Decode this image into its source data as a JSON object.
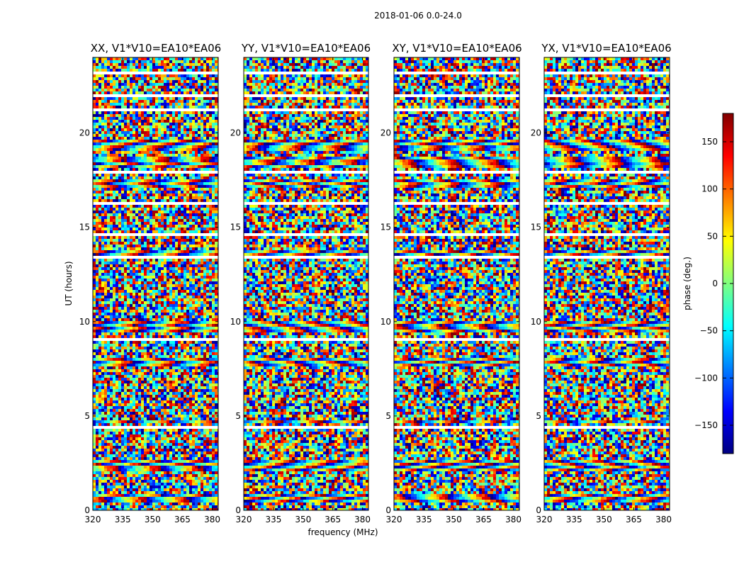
{
  "figure_title": "2018-01-06 0.0-24.0",
  "chart_data": {
    "type": "heatmap",
    "ylabel": "UT (hours)",
    "xlabel": "frequency (MHz)",
    "xlim": [
      320,
      383
    ],
    "ylim": [
      0,
      24
    ],
    "x_ticks": [
      320,
      335,
      350,
      365,
      380
    ],
    "y_ticks": [
      0,
      5,
      10,
      15,
      20
    ],
    "colorbar": {
      "label": "phase (deg.)",
      "range": [
        -180,
        180
      ],
      "ticks": [
        150,
        100,
        50,
        0,
        -50,
        -100,
        -150
      ],
      "tick_labels": [
        "150",
        "100",
        "50",
        "0",
        "−50",
        "−100",
        "−150"
      ],
      "colormap": "jet"
    },
    "panels": [
      {
        "title": "XX, V1*V10=EA10*EA06"
      },
      {
        "title": "YY, V1*V10=EA10*EA06"
      },
      {
        "title": "XY, V1*V10=EA10*EA06"
      },
      {
        "title": "YX, V1*V10=EA10*EA06"
      }
    ],
    "flagged_gaps_hours": [
      [
        23.08,
        23.2
      ],
      [
        21.9,
        21.98
      ],
      [
        21.2,
        21.28
      ],
      [
        20.5,
        20.58
      ],
      [
        19.18,
        19.24
      ],
      [
        18.72,
        18.78
      ],
      [
        17.86,
        17.94
      ],
      [
        16.2,
        16.28
      ],
      [
        15.7,
        15.76
      ],
      [
        14.55,
        14.62
      ],
      [
        13.35,
        13.43
      ],
      [
        12.1,
        12.18
      ],
      [
        9.05,
        9.12
      ],
      [
        8.55,
        8.6
      ],
      [
        7.55,
        7.63
      ],
      [
        6.7,
        6.78
      ],
      [
        4.35,
        4.42
      ],
      [
        3.05,
        3.12
      ],
      [
        2.45,
        2.55
      ],
      [
        1.85,
        1.9
      ],
      [
        1.0,
        1.07
      ]
    ],
    "coherent_bands_hours": [
      [
        19.0,
        19.6
      ],
      [
        18.2,
        18.7
      ],
      [
        17.1,
        17.5
      ],
      [
        13.4,
        13.8
      ],
      [
        9.4,
        10.0
      ],
      [
        7.6,
        8.0
      ],
      [
        4.6,
        4.8
      ],
      [
        2.0,
        2.6
      ],
      [
        0.4,
        0.8
      ]
    ]
  }
}
